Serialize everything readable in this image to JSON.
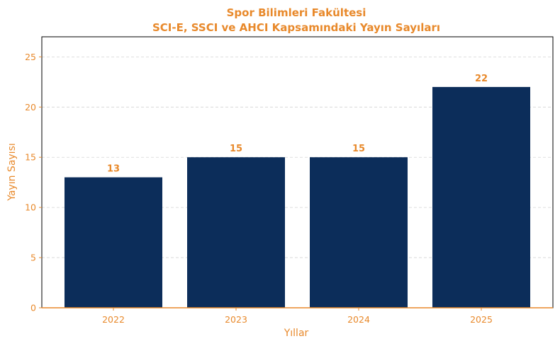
{
  "colors": {
    "accent": "#e8892b",
    "bar": "#0c2d5a",
    "grid": "#d3d3d3",
    "axis": "#000000"
  },
  "chart_data": {
    "type": "bar",
    "title": "Spor Bilimleri Fakültesi",
    "subtitle": "SCI-E, SSCI ve AHCI Kapsamındaki Yayın Sayıları",
    "xlabel": "Yıllar",
    "ylabel": "Yayın Sayısı",
    "categories": [
      "2022",
      "2023",
      "2024",
      "2025"
    ],
    "values": [
      13,
      15,
      15,
      22
    ],
    "data_labels": [
      "13",
      "15",
      "15",
      "22"
    ],
    "ylim": [
      0,
      27
    ],
    "yticks": [
      0,
      5,
      10,
      15,
      20,
      25
    ],
    "ytick_labels": [
      "0",
      "5",
      "10",
      "15",
      "20",
      "25"
    ],
    "grid": "y-dashed",
    "legend": "none"
  }
}
